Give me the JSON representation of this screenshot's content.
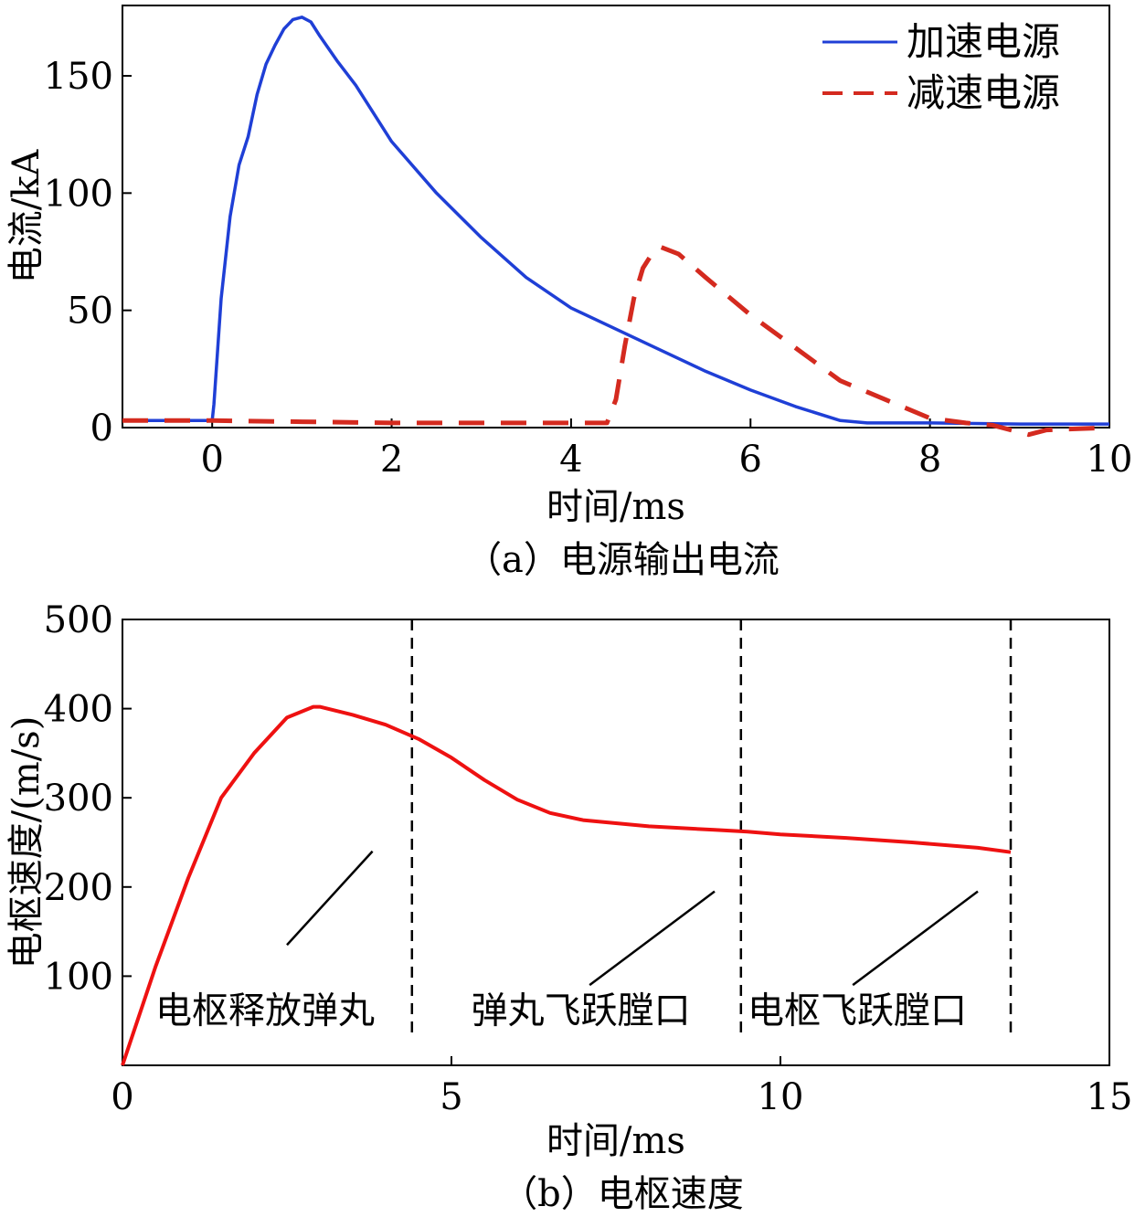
{
  "chart_data": [
    {
      "type": "line",
      "caption": "（a）电源输出电流",
      "xlabel": "时间/ms",
      "ylabel": "电流/kA",
      "xlim": [
        -1,
        10
      ],
      "ylim": [
        0,
        180
      ],
      "xticks": [
        0,
        2,
        4,
        6,
        8,
        10
      ],
      "yticks": [
        0,
        50,
        100,
        150
      ],
      "grid": false,
      "legend_position": "top-right",
      "colors": {
        "series_0": "#1f3fd6",
        "series_1": "#d42a1f"
      },
      "series": [
        {
          "name": "加速电源",
          "style": "solid",
          "x": [
            -1,
            0,
            0.02,
            0.1,
            0.2,
            0.3,
            0.4,
            0.5,
            0.6,
            0.7,
            0.8,
            0.9,
            1.0,
            1.1,
            1.2,
            1.4,
            1.6,
            2.0,
            2.5,
            3.0,
            3.5,
            4.0,
            4.5,
            5.0,
            5.5,
            6.0,
            6.5,
            7.0,
            7.3,
            8.0,
            9.0,
            10.0
          ],
          "values": [
            3,
            3,
            10,
            55,
            90,
            112,
            124,
            142,
            155,
            163,
            170,
            174,
            175,
            173,
            167,
            156,
            146,
            122,
            100,
            81,
            64,
            51,
            42,
            33,
            24,
            16,
            9,
            3,
            2,
            2,
            1.5,
            1.5
          ]
        },
        {
          "name": "减速电源",
          "style": "dashed",
          "x": [
            -1,
            0,
            1,
            2,
            3,
            4,
            4.4,
            4.5,
            4.6,
            4.7,
            4.8,
            4.9,
            5.0,
            5.2,
            5.5,
            6.0,
            6.5,
            7.0,
            7.5,
            8.0,
            8.4,
            8.7,
            9.0,
            9.1,
            9.3,
            10.0
          ],
          "values": [
            3,
            3,
            2.5,
            2,
            2,
            2,
            2,
            12,
            35,
            55,
            68,
            74,
            77,
            74,
            64,
            48,
            34,
            20,
            12,
            4,
            2,
            1,
            -2,
            -3,
            -1,
            0
          ]
        }
      ]
    },
    {
      "type": "line",
      "caption": "（b）电枢速度",
      "xlabel": "时间/ms",
      "ylabel": "电枢速度/(m/s)",
      "xlim": [
        0,
        15
      ],
      "ylim": [
        0,
        500
      ],
      "xticks": [
        0,
        5,
        10,
        15
      ],
      "yticks": [
        100,
        200,
        300,
        400,
        500
      ],
      "grid": false,
      "colors": {
        "series_0": "#ee1111"
      },
      "series": [
        {
          "x": [
            0,
            0.5,
            1.0,
            1.5,
            2.0,
            2.5,
            2.9,
            3.0,
            3.5,
            4.0,
            4.5,
            5.0,
            5.5,
            6.0,
            6.5,
            7.0,
            8.0,
            9.0,
            9.5,
            10.0,
            11.0,
            12.0,
            13.0,
            13.5
          ],
          "values": [
            0,
            110,
            210,
            300,
            350,
            390,
            402,
            402,
            393,
            382,
            366,
            345,
            320,
            298,
            283,
            275,
            268,
            264,
            262,
            259,
            255,
            250,
            244,
            239
          ]
        }
      ],
      "region_dividers_x": [
        4.4,
        9.4,
        13.5
      ],
      "region_labels": [
        {
          "text": "电枢释放弹丸",
          "x_start": 0.5,
          "y": 60,
          "pointer": [
            [
              2.5,
              135
            ],
            [
              3.8,
              240
            ]
          ]
        },
        {
          "text": "弹丸飞跃膛口",
          "x_start": 5.3,
          "y": 60,
          "pointer": [
            [
              7.1,
              90
            ],
            [
              9.0,
              195
            ]
          ]
        },
        {
          "text": "电枢飞跃膛口",
          "x_start": 9.5,
          "y": 60,
          "pointer": [
            [
              11.1,
              90
            ],
            [
              13.0,
              195
            ]
          ]
        }
      ]
    }
  ]
}
